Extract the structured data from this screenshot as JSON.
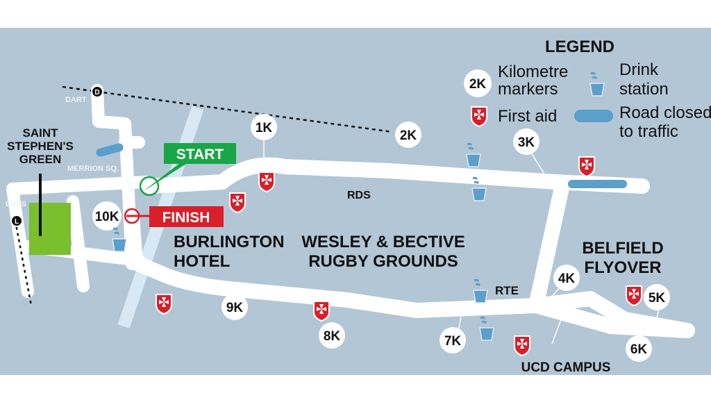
{
  "legend": {
    "title": "LEGEND",
    "km_sample": "2K",
    "km_label_1": "Kilometre",
    "km_label_2": "markers",
    "first_aid": "First aid",
    "drink_1": "Drink",
    "drink_2": "station",
    "road_1": "Road closed",
    "road_2": "to traffic"
  },
  "places": {
    "dart": "DART",
    "dart_icon": "D",
    "luas": "LUAS",
    "luas_icon": "L",
    "stephens_1": "SAINT",
    "stephens_2": "STEPHEN'S",
    "stephens_3": "GREEN",
    "merrion": "MERRION SQ.",
    "burlington_1": "BURLINGTON",
    "burlington_2": "HOTEL",
    "rds": "RDS",
    "wesley_1": "WESLEY & BECTIVE",
    "wesley_2": "RUGBY GROUNDS",
    "rte": "RTE",
    "belfield_1": "BELFIELD",
    "belfield_2": "FLYOVER",
    "ucd": "UCD CAMPUS"
  },
  "start_label": "START",
  "finish_label": "FINISH",
  "km_markers": [
    "1K",
    "2K",
    "3K",
    "4K",
    "5K",
    "6K",
    "7K",
    "8K",
    "9K",
    "10K"
  ],
  "colors": {
    "background": "#b3c6d5",
    "road": "#ffffff",
    "start": "#1aa548",
    "finish": "#d81f2a",
    "park": "#79bf2e",
    "closed_road": "#5b9fcb",
    "rail": "#d8e8f4",
    "first_aid": "#d81f2a"
  }
}
